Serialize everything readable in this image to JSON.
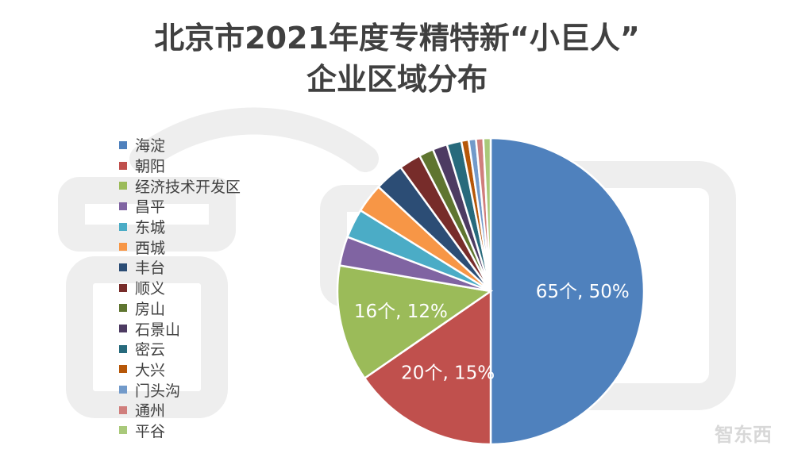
{
  "watermark": "智东西",
  "logo": "智东西",
  "chart_data": {
    "type": "pie",
    "title_line1": "北京市2021年度专精特新“小巨人”",
    "title_line2": "企业区域分布",
    "legend_position": "left",
    "slices": [
      {
        "name": "海淀",
        "value": 65,
        "label": "65个, 50%",
        "color": "#4f81bd"
      },
      {
        "name": "朝阳",
        "value": 20,
        "label": "20个, 15%",
        "color": "#c0504d"
      },
      {
        "name": "经济技术开发区",
        "value": 16,
        "label": "16个, 12%",
        "color": "#9bbb59"
      },
      {
        "name": "昌平",
        "value": 4,
        "label": "",
        "color": "#8064a2"
      },
      {
        "name": "东城",
        "value": 4,
        "label": "",
        "color": "#4bacc6"
      },
      {
        "name": "西城",
        "value": 4,
        "label": "",
        "color": "#f79646"
      },
      {
        "name": "丰台",
        "value": 4,
        "label": "",
        "color": "#2c4d75"
      },
      {
        "name": "顺义",
        "value": 3,
        "label": "",
        "color": "#772c2a"
      },
      {
        "name": "房山",
        "value": 2,
        "label": "",
        "color": "#5f7530"
      },
      {
        "name": "石景山",
        "value": 2,
        "label": "",
        "color": "#4d3b62"
      },
      {
        "name": "密云",
        "value": 2,
        "label": "",
        "color": "#276a7c"
      },
      {
        "name": "大兴",
        "value": 1,
        "label": "",
        "color": "#b65708"
      },
      {
        "name": "门头沟",
        "value": 1,
        "label": "",
        "color": "#729aca"
      },
      {
        "name": "通州",
        "value": 1,
        "label": "",
        "color": "#d07e7c"
      },
      {
        "name": "平谷",
        "value": 1,
        "label": "",
        "color": "#a9c97a"
      }
    ]
  }
}
